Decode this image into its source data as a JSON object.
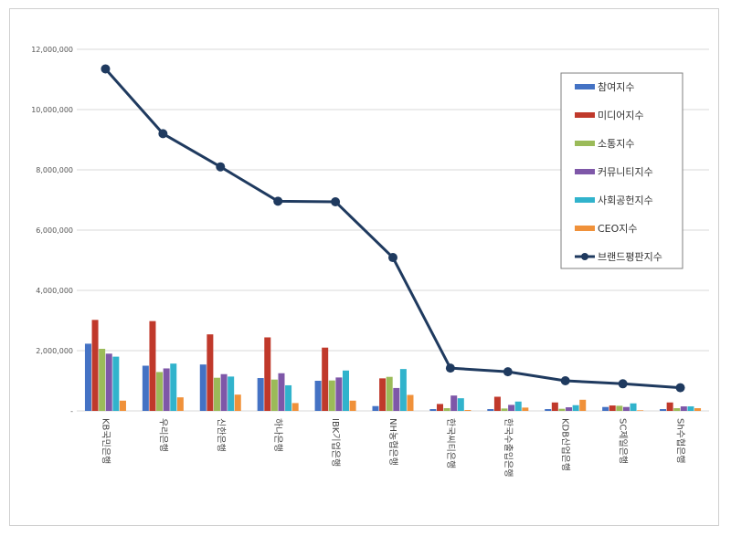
{
  "chart_data": {
    "type": "bar",
    "categories": [
      "KB국민은행",
      "우리은행",
      "신한은행",
      "하나은행",
      "IBK기업은행",
      "NH농협은행",
      "한국씨티은행",
      "한국수출입은행",
      "KDB산업은행",
      "SC제일은행",
      "Sh수협은행"
    ],
    "ylim": [
      0,
      12000000
    ],
    "yticks": [
      "-",
      "2,000,000",
      "4,000,000",
      "6,000,000",
      "8,000,000",
      "10,000,000",
      "12,000,000"
    ],
    "grid": true,
    "legend_position": "right",
    "series": [
      {
        "name": "참여지수",
        "kind": "bar",
        "color": "#4472C4",
        "values": [
          2230000,
          1500000,
          1540000,
          1090000,
          1000000,
          160000,
          60000,
          60000,
          60000,
          130000,
          60000
        ]
      },
      {
        "name": "미디어지수",
        "kind": "bar",
        "color": "#C0392B",
        "values": [
          3020000,
          2980000,
          2540000,
          2440000,
          2100000,
          1080000,
          230000,
          470000,
          280000,
          180000,
          280000
        ]
      },
      {
        "name": "소통지수",
        "kind": "bar",
        "color": "#9BBB59",
        "values": [
          2060000,
          1290000,
          1100000,
          1040000,
          1010000,
          1130000,
          90000,
          80000,
          70000,
          170000,
          90000
        ]
      },
      {
        "name": "커뮤니티지수",
        "kind": "bar",
        "color": "#7E57A8",
        "values": [
          1900000,
          1410000,
          1220000,
          1250000,
          1110000,
          760000,
          510000,
          200000,
          120000,
          130000,
          150000
        ]
      },
      {
        "name": "사회공헌지수",
        "kind": "bar",
        "color": "#31B3CC",
        "values": [
          1800000,
          1570000,
          1140000,
          850000,
          1340000,
          1390000,
          420000,
          310000,
          190000,
          250000,
          150000
        ]
      },
      {
        "name": "CEO지수",
        "kind": "bar",
        "color": "#F0913A",
        "values": [
          340000,
          450000,
          540000,
          260000,
          340000,
          530000,
          30000,
          110000,
          370000,
          20000,
          90000
        ]
      },
      {
        "name": "브랜드평판지수",
        "kind": "line",
        "color": "#1F3A5F",
        "values": [
          11350000,
          9200000,
          8100000,
          6960000,
          6940000,
          5090000,
          1420000,
          1300000,
          1000000,
          900000,
          770000
        ]
      }
    ]
  }
}
